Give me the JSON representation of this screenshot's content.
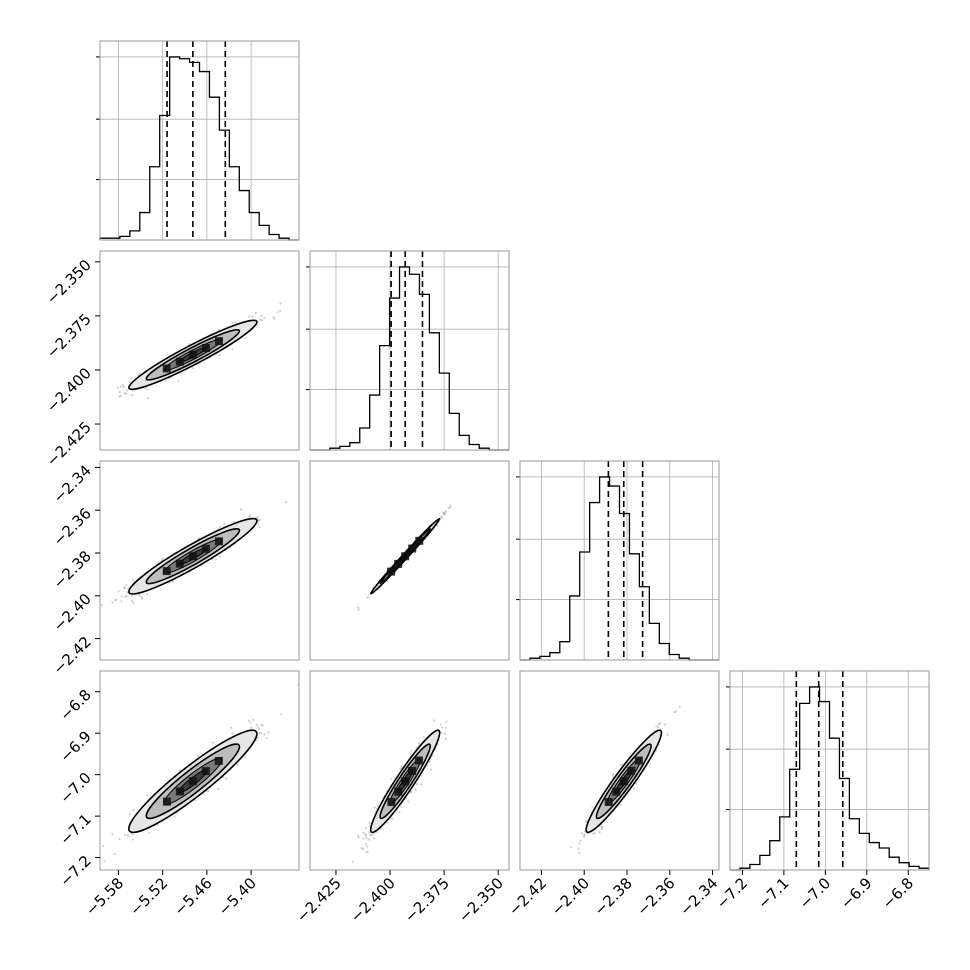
{
  "chart_data": {
    "type": "corner",
    "grid": true,
    "colors": {
      "frame": "#999999",
      "grid": "#b0b0b0",
      "line": "#000000",
      "contour_fill": [
        "#e6e6e6",
        "#bdbdbd",
        "#7a7a7a",
        "#3d3d3d"
      ],
      "scatter": "#9a9a9a"
    },
    "params": [
      {
        "range": [
          -5.605,
          -5.335
        ],
        "ticks": [
          -5.58,
          -5.52,
          -5.46,
          -5.4
        ],
        "tick_labels": [
          "−5.58",
          "−5.52",
          "−5.46",
          "−5.40"
        ],
        "quantiles": [
          -5.514,
          -5.479,
          -5.435
        ],
        "hist": [
          0.01,
          0.01,
          0.02,
          0.05,
          0.15,
          0.4,
          0.68,
          1.0,
          0.99,
          0.97,
          0.92,
          0.78,
          0.6,
          0.4,
          0.27,
          0.15,
          0.08,
          0.03,
          0.01,
          0.0
        ]
      },
      {
        "range": [
          -2.437,
          -2.345
        ],
        "ticks": [
          -2.425,
          -2.4,
          -2.375,
          -2.35
        ],
        "tick_labels": [
          "−2.425",
          "−2.400",
          "−2.375",
          "−2.350"
        ],
        "quantiles": [
          -2.3995,
          -2.393,
          -2.385
        ],
        "hist": [
          0.0,
          0.0,
          0.01,
          0.02,
          0.04,
          0.12,
          0.3,
          0.57,
          0.83,
          1.0,
          0.96,
          0.85,
          0.64,
          0.42,
          0.2,
          0.08,
          0.03,
          0.01,
          0.0,
          0.0
        ]
      },
      {
        "range": [
          -2.43,
          -2.337
        ],
        "ticks": [
          -2.42,
          -2.4,
          -2.38,
          -2.36,
          -2.34
        ],
        "tick_labels": [
          "−2.42",
          "−2.40",
          "−2.38",
          "−2.36",
          "−2.34"
        ],
        "quantiles": [
          -2.3887,
          -2.3815,
          -2.3727
        ],
        "hist": [
          0.0,
          0.01,
          0.02,
          0.04,
          0.1,
          0.35,
          0.59,
          0.86,
          1.0,
          0.95,
          0.8,
          0.58,
          0.4,
          0.2,
          0.09,
          0.03,
          0.01,
          0.0,
          0.0,
          0.0
        ]
      },
      {
        "range": [
          -7.23,
          -6.75
        ],
        "ticks": [
          -7.2,
          -7.1,
          -7.0,
          -6.9,
          -6.8
        ],
        "tick_labels": [
          "−7.2",
          "−7.1",
          "−7.0",
          "−6.9",
          "−6.8"
        ],
        "quantiles": [
          -7.07,
          -7.016,
          -6.958
        ],
        "hist": [
          0.0,
          0.01,
          0.03,
          0.08,
          0.16,
          0.29,
          0.55,
          0.91,
          1.0,
          0.92,
          0.72,
          0.5,
          0.28,
          0.2,
          0.15,
          0.12,
          0.07,
          0.04,
          0.02,
          0.01
        ]
      }
    ],
    "hist_yticks": [
      0.33,
      0.66,
      1.0
    ],
    "pairs": [
      {
        "row": 1,
        "col": 0,
        "corr": 0.95
      },
      {
        "row": 2,
        "col": 0,
        "corr": 0.94
      },
      {
        "row": 2,
        "col": 1,
        "corr": 0.995
      },
      {
        "row": 3,
        "col": 0,
        "corr": 0.93
      },
      {
        "row": 3,
        "col": 1,
        "corr": 0.95
      },
      {
        "row": 3,
        "col": 2,
        "corr": 0.95
      }
    ]
  }
}
